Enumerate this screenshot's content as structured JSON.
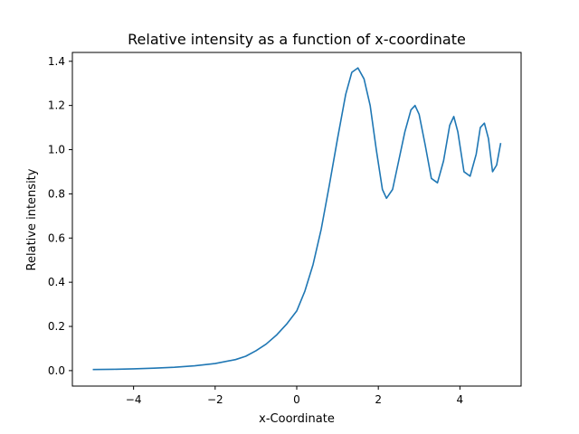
{
  "chart_data": {
    "type": "line",
    "title": "Relative intensity as a function of x-coordinate",
    "xlabel": "x-Coordinate",
    "ylabel": "Relative intensity",
    "xlim": [
      -5.5,
      5.5
    ],
    "ylim": [
      -0.07,
      1.44
    ],
    "xticks": [
      -4,
      -2,
      0,
      2,
      4
    ],
    "xtick_labels": [
      "−4",
      "−2",
      "0",
      "2",
      "4"
    ],
    "yticks": [
      0.0,
      0.2,
      0.4,
      0.6,
      0.8,
      1.0,
      1.2,
      1.4
    ],
    "ytick_labels": [
      "0.0",
      "0.2",
      "0.4",
      "0.6",
      "0.8",
      "1.0",
      "1.2",
      "1.4"
    ],
    "grid": false,
    "legend": "none",
    "colors": {
      "line": "#1f77b4",
      "axes": "#000000",
      "background": "#ffffff"
    },
    "series": [
      {
        "x": [
          -5.0,
          -4.5,
          -4.0,
          -3.5,
          -3.0,
          -2.5,
          -2.0,
          -1.5,
          -1.25,
          -1.0,
          -0.75,
          -0.5,
          -0.25,
          0.0,
          0.2,
          0.4,
          0.6,
          0.8,
          1.0,
          1.2,
          1.35,
          1.5,
          1.65,
          1.8,
          1.95,
          2.1,
          2.2,
          2.35,
          2.5,
          2.65,
          2.8,
          2.9,
          3.0,
          3.15,
          3.3,
          3.45,
          3.6,
          3.75,
          3.85,
          3.95,
          4.1,
          4.25,
          4.4,
          4.5,
          4.6,
          4.7,
          4.8,
          4.9,
          5.0
        ],
        "y": [
          0.005,
          0.006,
          0.008,
          0.011,
          0.015,
          0.022,
          0.032,
          0.05,
          0.065,
          0.09,
          0.12,
          0.16,
          0.21,
          0.27,
          0.36,
          0.48,
          0.64,
          0.84,
          1.05,
          1.25,
          1.35,
          1.37,
          1.32,
          1.2,
          1.0,
          0.82,
          0.78,
          0.82,
          0.95,
          1.08,
          1.18,
          1.2,
          1.16,
          1.02,
          0.87,
          0.85,
          0.95,
          1.11,
          1.15,
          1.08,
          0.9,
          0.88,
          0.98,
          1.1,
          1.12,
          1.05,
          0.9,
          0.93,
          1.03
        ]
      }
    ]
  }
}
